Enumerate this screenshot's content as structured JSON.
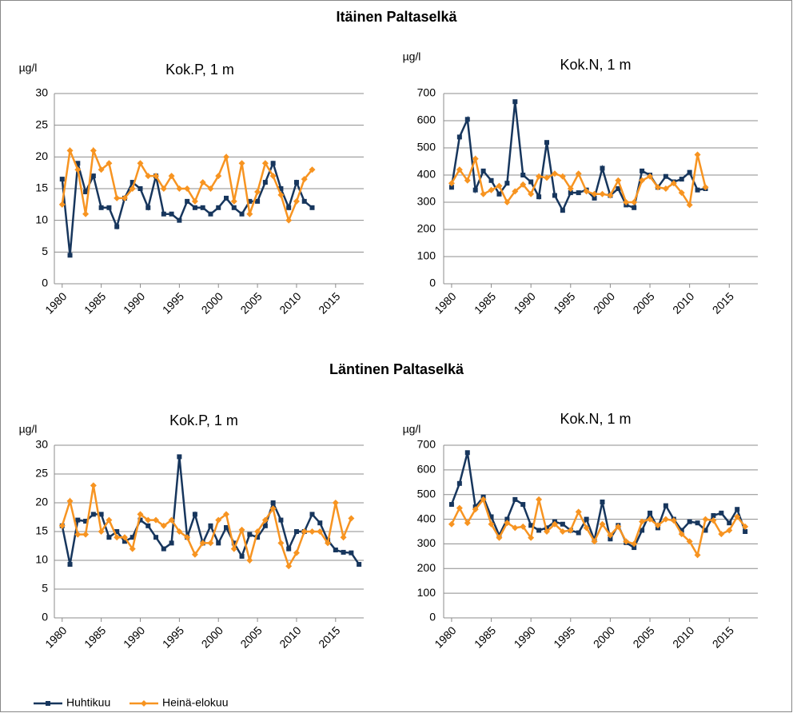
{
  "section_titles": [
    "Itäinen Paltaselkä",
    "Läntinen Paltaselkä"
  ],
  "chart_data": [
    {
      "type": "line",
      "title": "Kok.P, 1 m",
      "y_label": "µg/l",
      "x": [
        1980,
        1981,
        1982,
        1983,
        1984,
        1985,
        1986,
        1987,
        1988,
        1989,
        1990,
        1991,
        1992,
        1993,
        1994,
        1995,
        1996,
        1997,
        1998,
        1999,
        2000,
        2001,
        2002,
        2003,
        2004,
        2005,
        2006,
        2007,
        2008,
        2009,
        2010,
        2011,
        2012
      ],
      "series": [
        {
          "name": "Huhtikuu",
          "color": "#17365d",
          "marker": "square",
          "values": [
            16.5,
            4.5,
            19,
            14.5,
            17,
            12,
            12,
            9,
            13.5,
            16,
            15,
            12,
            17,
            11,
            11,
            10,
            13,
            12,
            12,
            11,
            12,
            13.5,
            12,
            11,
            13,
            13,
            16,
            19,
            15,
            12,
            16,
            13,
            12
          ]
        },
        {
          "name": "Heinä-elokuu",
          "color": "#f79421",
          "marker": "diamond",
          "values": [
            12.5,
            21,
            18,
            11,
            21,
            18,
            19,
            13.5,
            13.5,
            15,
            19,
            17,
            17,
            15,
            17,
            15,
            15,
            13,
            16,
            15,
            17,
            20,
            13,
            19,
            11,
            14.5,
            19,
            17,
            14,
            10,
            13,
            16.5,
            18
          ]
        }
      ],
      "xlim": [
        1979,
        2018.6
      ],
      "xticks": [
        1980,
        1985,
        1990,
        1995,
        2000,
        2005,
        2010,
        2015
      ],
      "ylim": [
        0,
        30
      ],
      "yticks": [
        0,
        5,
        10,
        15,
        20,
        25,
        30
      ],
      "grid": true
    },
    {
      "type": "line",
      "title": "Kok.N, 1 m",
      "y_label": "µg/l",
      "x": [
        1980,
        1981,
        1982,
        1983,
        1984,
        1985,
        1986,
        1987,
        1988,
        1989,
        1990,
        1991,
        1992,
        1993,
        1994,
        1995,
        1996,
        1997,
        1998,
        1999,
        2000,
        2001,
        2002,
        2003,
        2004,
        2005,
        2006,
        2007,
        2008,
        2009,
        2010,
        2011,
        2012
      ],
      "series": [
        {
          "name": "Huhtikuu",
          "color": "#17365d",
          "marker": "square",
          "values": [
            355,
            540,
            605,
            345,
            415,
            380,
            330,
            370,
            670,
            400,
            375,
            320,
            520,
            325,
            270,
            335,
            335,
            345,
            315,
            425,
            325,
            350,
            290,
            280,
            415,
            400,
            355,
            395,
            375,
            385,
            410,
            345,
            350
          ]
        },
        {
          "name": "Heinä-elokuu",
          "color": "#f79421",
          "marker": "diamond",
          "values": [
            370,
            420,
            380,
            460,
            330,
            345,
            360,
            300,
            340,
            365,
            330,
            395,
            390,
            405,
            395,
            350,
            405,
            340,
            330,
            330,
            325,
            380,
            300,
            300,
            380,
            395,
            355,
            350,
            370,
            335,
            290,
            475,
            355
          ]
        }
      ],
      "xlim": [
        1979,
        2018.6
      ],
      "xticks": [
        1980,
        1985,
        1990,
        1995,
        2000,
        2005,
        2010,
        2015
      ],
      "ylim": [
        0,
        700
      ],
      "yticks": [
        0,
        100,
        200,
        300,
        400,
        500,
        600,
        700
      ],
      "grid": true
    },
    {
      "type": "line",
      "title": "Kok.P, 1 m",
      "y_label": "µg/l",
      "x": [
        1980,
        1981,
        1982,
        1983,
        1984,
        1985,
        1986,
        1987,
        1988,
        1989,
        1990,
        1991,
        1992,
        1993,
        1994,
        1995,
        1996,
        1997,
        1998,
        1999,
        2000,
        2001,
        2002,
        2003,
        2004,
        2005,
        2006,
        2007,
        2008,
        2009,
        2010,
        2011,
        2012,
        2013,
        2014,
        2015,
        2016,
        2017,
        2018
      ],
      "series": [
        {
          "name": "Huhtikuu",
          "color": "#17365d",
          "marker": "square",
          "values": [
            16,
            9.3,
            17,
            16.8,
            18,
            18,
            14,
            15,
            13.3,
            14,
            17,
            16,
            14,
            12,
            13,
            28,
            14,
            18,
            13,
            16,
            13,
            15.7,
            13,
            10.7,
            14.5,
            14,
            16,
            20,
            17,
            12,
            15,
            15,
            18,
            16.5,
            13.5,
            11.8,
            11.4,
            11.3,
            9.3
          ]
        },
        {
          "name": "Heinä-elokuu",
          "color": "#f79421",
          "marker": "diamond",
          "values": [
            16,
            20.3,
            14.5,
            14.5,
            23,
            15,
            17,
            14,
            14,
            12,
            18,
            17,
            17,
            16,
            17,
            15,
            14,
            11,
            13,
            13,
            17,
            18,
            12,
            15.3,
            10,
            15,
            17,
            19,
            13,
            9,
            11.3,
            15,
            15,
            15,
            13,
            20,
            14,
            17.3,
            null
          ]
        }
      ],
      "xlim": [
        1979,
        2018.6
      ],
      "xticks": [
        1980,
        1985,
        1990,
        1995,
        2000,
        2005,
        2010,
        2015
      ],
      "ylim": [
        0,
        30
      ],
      "yticks": [
        0,
        5,
        10,
        15,
        20,
        25,
        30
      ],
      "grid": true
    },
    {
      "type": "line",
      "title": "Kok.N, 1 m",
      "y_label": "µg/l",
      "x": [
        1980,
        1981,
        1982,
        1983,
        1984,
        1985,
        1986,
        1987,
        1988,
        1989,
        1990,
        1991,
        1992,
        1993,
        1994,
        1995,
        1996,
        1997,
        1998,
        1999,
        2000,
        2001,
        2002,
        2003,
        2004,
        2005,
        2006,
        2007,
        2008,
        2009,
        2010,
        2011,
        2012,
        2013,
        2014,
        2015,
        2016,
        2017
      ],
      "series": [
        {
          "name": "Huhtikuu",
          "color": "#17365d",
          "marker": "square",
          "values": [
            460,
            545,
            670,
            450,
            490,
            410,
            335,
            400,
            480,
            460,
            375,
            355,
            365,
            390,
            380,
            355,
            345,
            400,
            315,
            470,
            320,
            375,
            305,
            285,
            355,
            425,
            365,
            455,
            400,
            355,
            390,
            385,
            355,
            415,
            425,
            385,
            440,
            350
          ]
        },
        {
          "name": "Heinä-elokuu",
          "color": "#f79421",
          "marker": "diamond",
          "values": [
            380,
            445,
            385,
            440,
            480,
            380,
            325,
            385,
            365,
            370,
            325,
            480,
            350,
            380,
            350,
            355,
            430,
            365,
            310,
            380,
            335,
            370,
            310,
            300,
            390,
            400,
            375,
            400,
            395,
            340,
            310,
            255,
            400,
            395,
            340,
            355,
            410,
            370
          ]
        }
      ],
      "xlim": [
        1979,
        2018.6
      ],
      "xticks": [
        1980,
        1985,
        1990,
        1995,
        2000,
        2005,
        2010,
        2015
      ],
      "ylim": [
        0,
        700
      ],
      "yticks": [
        0,
        100,
        200,
        300,
        400,
        500,
        600,
        700
      ],
      "grid": true
    }
  ]
}
